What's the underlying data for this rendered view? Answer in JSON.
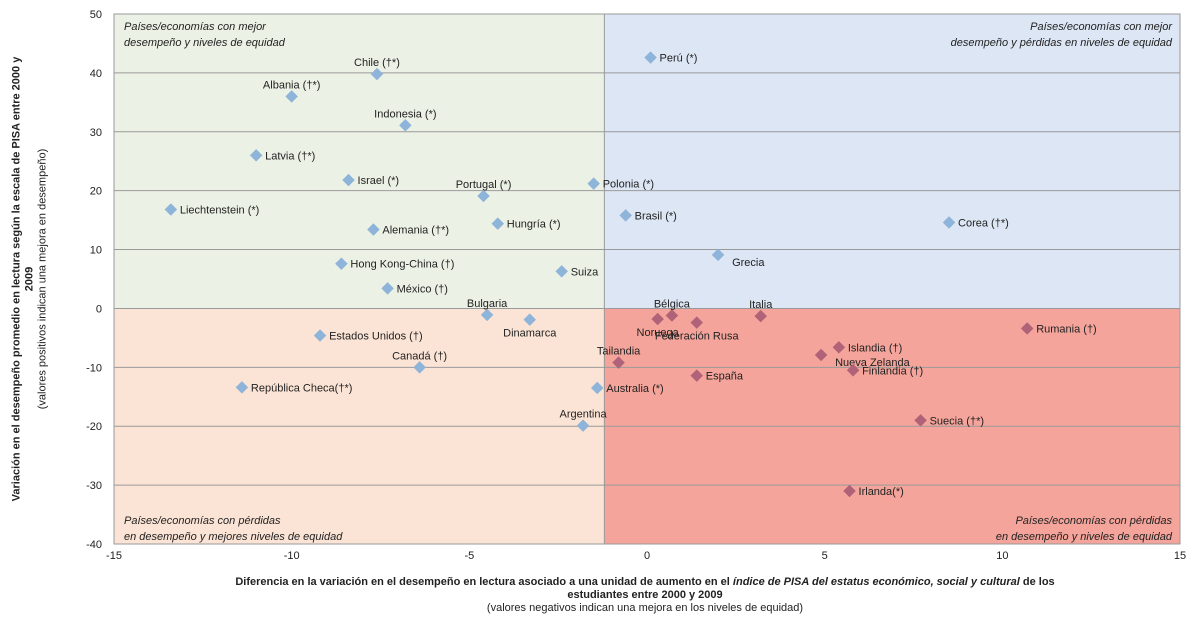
{
  "chart_data": {
    "type": "scatter",
    "xlim": [
      -15,
      15
    ],
    "ylim": [
      -40,
      50
    ],
    "x_ticks": [
      "-15",
      "-10",
      "-5",
      "0",
      "5",
      "10",
      "15"
    ],
    "y_ticks": [
      "-40",
      "-30",
      "-20",
      "-10",
      "0",
      "10",
      "20",
      "30",
      "40",
      "50"
    ],
    "grid": "horizontal",
    "xlabel": {
      "pre": "Diferencia en la variación en el desempeño en lectura asociado a una unidad de aumento en el ",
      "italic": "índice de PISA del estatus económico, social y cultural",
      "post": " de los",
      "line2": "estudiantes entre 2000 y 2009",
      "sub": "(valores negativos indican una mejora en los niveles de equidad)"
    },
    "ylabel": {
      "line1": "Variación en el desempeño promedio en lectura según la escala de PISA entre 2000 y",
      "line2": "2009",
      "sub": "(valores positivos indican una mejora en desempeño)"
    },
    "quadrant_split_x": -1.2,
    "quadrants": [
      {
        "id": "top-left",
        "color": "#ecf1e5",
        "lines": [
          "Países/economías con mejor",
          "desempeño y niveles de equidad"
        ]
      },
      {
        "id": "top-right",
        "color": "#dce6f4",
        "lines": [
          "Países/economías con mejor",
          "desempeño y pérdidas en niveles de equidad"
        ]
      },
      {
        "id": "bottom-left",
        "color": "#fbe4d5",
        "lines": [
          "Países/economías con pérdidas",
          "en desempeño y mejores niveles de equidad"
        ]
      },
      {
        "id": "bottom-right",
        "color": "#f4a49a",
        "lines": [
          "Países/economías con pérdidas",
          "en desempeño y niveles de equidad"
        ]
      }
    ],
    "marker_colors": {
      "blue": "#8fb4da",
      "red": "#b06278"
    },
    "points": [
      {
        "label": "Chile (†*)",
        "x": -7.6,
        "y": 39.8,
        "color": "blue",
        "lpos": "above"
      },
      {
        "label": "Albania (†*)",
        "x": -10.0,
        "y": 36.0,
        "color": "blue",
        "lpos": "above"
      },
      {
        "label": "Indonesia (*)",
        "x": -6.8,
        "y": 31.1,
        "color": "blue",
        "lpos": "above"
      },
      {
        "label": "Latvia (†*)",
        "x": -11.0,
        "y": 26.0,
        "color": "blue",
        "lpos": "right"
      },
      {
        "label": "Israel (*)",
        "x": -8.4,
        "y": 21.8,
        "color": "blue",
        "lpos": "right"
      },
      {
        "label": "Portugal (*)",
        "x": -4.6,
        "y": 19.1,
        "color": "blue",
        "lpos": "above"
      },
      {
        "label": "Polonia (*)",
        "x": -1.5,
        "y": 21.2,
        "color": "blue",
        "lpos": "right"
      },
      {
        "label": "Liechtenstein (*)",
        "x": -13.4,
        "y": 16.8,
        "color": "blue",
        "lpos": "right"
      },
      {
        "label": "Alemania (†*)",
        "x": -7.7,
        "y": 13.4,
        "color": "blue",
        "lpos": "right"
      },
      {
        "label": "Hungría (*)",
        "x": -4.2,
        "y": 14.4,
        "color": "blue",
        "lpos": "right"
      },
      {
        "label": "Hong Kong-China (†)",
        "x": -8.6,
        "y": 7.6,
        "color": "blue",
        "lpos": "right"
      },
      {
        "label": "México (†)",
        "x": -7.3,
        "y": 3.4,
        "color": "blue",
        "lpos": "right"
      },
      {
        "label": "Suiza",
        "x": -2.4,
        "y": 6.3,
        "color": "blue",
        "lpos": "right"
      },
      {
        "label": "Perú (*)",
        "x": 0.1,
        "y": 42.6,
        "color": "blue",
        "lpos": "right"
      },
      {
        "label": "Brasil (*)",
        "x": -0.6,
        "y": 15.8,
        "color": "blue",
        "lpos": "right"
      },
      {
        "label": "Grecia",
        "x": 2.0,
        "y": 9.1,
        "color": "blue",
        "lpos": "right-below"
      },
      {
        "label": "Corea (†*)",
        "x": 8.5,
        "y": 14.6,
        "color": "blue",
        "lpos": "right"
      },
      {
        "label": "Bulgaria",
        "x": -4.5,
        "y": -1.1,
        "color": "blue",
        "lpos": "above"
      },
      {
        "label": "Dinamarca",
        "x": -3.3,
        "y": -1.9,
        "color": "blue",
        "lpos": "below"
      },
      {
        "label": "Estados Unidos (†)",
        "x": -9.2,
        "y": -4.6,
        "color": "blue",
        "lpos": "right"
      },
      {
        "label": "Canadá (†)",
        "x": -6.4,
        "y": -10.0,
        "color": "blue",
        "lpos": "above"
      },
      {
        "label": "República Checa(†*)",
        "x": -11.4,
        "y": -13.4,
        "color": "blue",
        "lpos": "right"
      },
      {
        "label": "Australia (*)",
        "x": -1.4,
        "y": -13.5,
        "color": "blue",
        "lpos": "right"
      },
      {
        "label": "Argentina",
        "x": -1.8,
        "y": -19.9,
        "color": "blue",
        "lpos": "above"
      },
      {
        "label": "Noruega",
        "x": 0.3,
        "y": -1.8,
        "color": "red",
        "lpos": "below"
      },
      {
        "label": "Bélgica",
        "x": 0.7,
        "y": -1.2,
        "color": "red",
        "lpos": "above"
      },
      {
        "label": "Federación Rusa",
        "x": 1.4,
        "y": -2.4,
        "color": "red",
        "lpos": "below"
      },
      {
        "label": "Italia",
        "x": 3.2,
        "y": -1.3,
        "color": "red",
        "lpos": "above"
      },
      {
        "label": "Tailandia",
        "x": -0.8,
        "y": -9.2,
        "color": "red",
        "lpos": "above"
      },
      {
        "label": "España",
        "x": 1.4,
        "y": -11.4,
        "color": "red",
        "lpos": "right"
      },
      {
        "label": "Islandia (†)",
        "x": 5.4,
        "y": -6.6,
        "color": "red",
        "lpos": "right"
      },
      {
        "label": "Nueva Zelanda",
        "x": 4.9,
        "y": -7.9,
        "color": "red",
        "lpos": "right-below"
      },
      {
        "label": "Finlandia (†)",
        "x": 5.8,
        "y": -10.5,
        "color": "red",
        "lpos": "right"
      },
      {
        "label": "Rumania (†)",
        "x": 10.7,
        "y": -3.4,
        "color": "red",
        "lpos": "right"
      },
      {
        "label": "Suecia (†*)",
        "x": 7.7,
        "y": -19.0,
        "color": "red",
        "lpos": "right"
      },
      {
        "label": "Irlanda(*)",
        "x": 5.7,
        "y": -31.0,
        "color": "red",
        "lpos": "right"
      }
    ]
  }
}
